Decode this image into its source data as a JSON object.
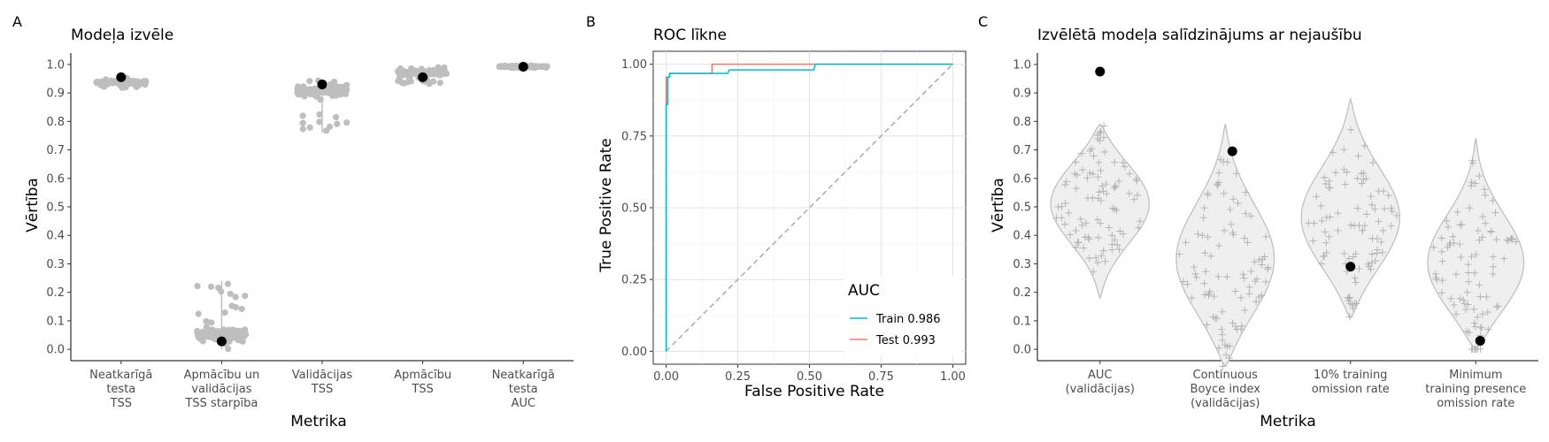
{
  "panel_tags": [
    "A",
    "B",
    "C"
  ],
  "chart_data": [
    {
      "type": "scatter",
      "title": "Modeļa izvēle",
      "xlabel": "Metrika",
      "ylabel": "Vērtība",
      "ylim": [
        -0.04,
        1.04
      ],
      "yticks": [
        "0.0",
        "0.1",
        "0.2",
        "0.3",
        "0.4",
        "0.5",
        "0.6",
        "0.7",
        "0.8",
        "0.9",
        "1.0"
      ],
      "grid": false,
      "categories": [
        [
          "Neatkarīgā",
          "testa",
          "TSS"
        ],
        [
          "Apmācību un",
          "validācijas",
          "TSS starpība"
        ],
        [
          "Validācijas",
          "TSS"
        ],
        [
          "Apmācību",
          "TSS"
        ],
        [
          "Neatkarīgā",
          "testa",
          "AUC"
        ]
      ],
      "colors": {
        "points": "#bebebe",
        "selected": "#000000"
      },
      "distributions": [
        {
          "median": 0.935,
          "q1": 0.93,
          "q3": 0.945,
          "min": 0.915,
          "max": 0.955,
          "n": 120
        },
        {
          "median": 0.05,
          "q1": 0.025,
          "q3": 0.075,
          "min": 0.0,
          "max": 0.24,
          "n": 140
        },
        {
          "median": 0.91,
          "q1": 0.88,
          "q3": 0.935,
          "min": 0.76,
          "max": 0.945,
          "n": 110
        },
        {
          "median": 0.97,
          "q1": 0.955,
          "q3": 0.985,
          "min": 0.93,
          "max": 0.995,
          "n": 120
        },
        {
          "median": 0.992,
          "q1": 0.99,
          "q3": 0.994,
          "min": 0.988,
          "max": 0.996,
          "n": 120
        }
      ],
      "selected_model": [
        0.955,
        0.028,
        0.93,
        0.955,
        0.992
      ]
    },
    {
      "type": "line",
      "title": "ROC līkne",
      "xlabel": "False Positive Rate",
      "ylabel": "True Positive Rate",
      "xlim": [
        0,
        1
      ],
      "ylim": [
        0,
        1
      ],
      "xticks": [
        "0.00",
        "0.25",
        "0.50",
        "0.75",
        "1.00"
      ],
      "yticks": [
        "0.00",
        "0.25",
        "0.50",
        "0.75",
        "1.00"
      ],
      "grid": true,
      "legend": {
        "title": "AUC",
        "position": "bottom-right"
      },
      "series": [
        {
          "name": "Train 0.986",
          "color": "#00bfc4",
          "x": [
            0,
            0,
            0.005,
            0.005,
            0.012,
            0.012,
            0.16,
            0.215,
            0.22,
            0.515,
            0.52,
            1.0
          ],
          "y": [
            0,
            0.86,
            0.86,
            0.955,
            0.955,
            0.968,
            0.968,
            0.968,
            0.98,
            0.98,
            1.0,
            1.0
          ]
        },
        {
          "name": "Test 0.993",
          "color": "#f8766d",
          "x": [
            0,
            0,
            0.012,
            0.012,
            0.16,
            0.16,
            1.0
          ],
          "y": [
            0,
            0.955,
            0.955,
            0.968,
            0.968,
            1.0,
            1.0
          ]
        },
        {
          "name": "",
          "color": "#aaaaaa",
          "dashed": true,
          "x": [
            0,
            1
          ],
          "y": [
            0,
            1
          ]
        }
      ]
    },
    {
      "type": "violin",
      "title": "Izvēlētā modeļa salīdzinājums ar nejaušību",
      "xlabel": "Metrika",
      "ylabel": "Vērtība",
      "ylim": [
        -0.04,
        1.04
      ],
      "yticks": [
        "0.0",
        "0.1",
        "0.2",
        "0.3",
        "0.4",
        "0.5",
        "0.6",
        "0.7",
        "0.8",
        "0.9",
        "1.0"
      ],
      "grid": false,
      "categories": [
        [
          "AUC",
          "(validācijas)"
        ],
        [
          "Continuous",
          "Boyce index",
          "(validācijas)"
        ],
        [
          "10% training",
          "omission rate"
        ],
        [
          "Minimum",
          "training presence",
          "omission rate"
        ]
      ],
      "colors": {
        "violin_fill": "#efefef",
        "violin_line": "#bdbdbd",
        "points": "#b0b0b0",
        "selected": "#000000"
      },
      "null_distributions": [
        {
          "min": 0.18,
          "max": 0.79,
          "mode": 0.52,
          "n": 90
        },
        {
          "min": -0.06,
          "max": 0.79,
          "mode": 0.3,
          "n": 90
        },
        {
          "min": 0.11,
          "max": 0.88,
          "mode": 0.45,
          "n": 90
        },
        {
          "min": 0.0,
          "max": 0.74,
          "mode": 0.28,
          "n": 90
        }
      ],
      "selected_model": [
        0.975,
        0.695,
        0.29,
        0.03
      ]
    }
  ]
}
